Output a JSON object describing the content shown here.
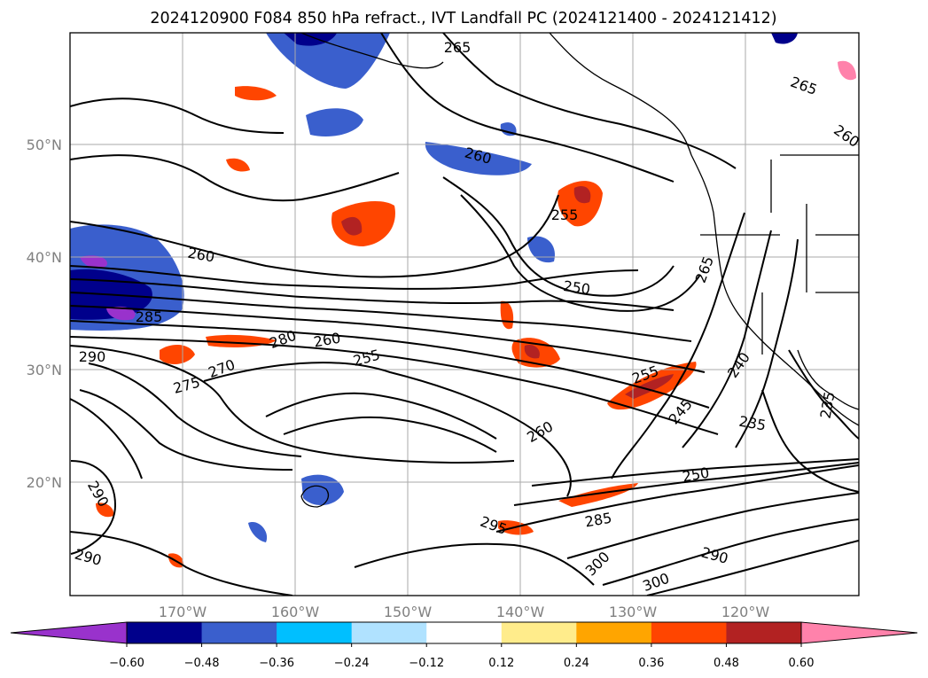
{
  "title": "2024120900 F084 850 hPa refract., IVT Landfall PC (2024121400 - 2024121412)",
  "map": {
    "lon_ticks": [
      "170°W",
      "160°W",
      "150°W",
      "140°W",
      "130°W",
      "120°W"
    ],
    "lat_ticks": [
      "50°N",
      "40°N",
      "30°N",
      "20°N"
    ],
    "contour_labels": [
      "265",
      "265",
      "260",
      "260",
      "255",
      "260",
      "265",
      "250",
      "285",
      "290",
      "280",
      "260",
      "255",
      "275",
      "270",
      "255",
      "240",
      "245",
      "260",
      "235",
      "235",
      "250",
      "290",
      "285",
      "295",
      "290",
      "300",
      "300",
      "290"
    ]
  },
  "colorbar": {
    "ticks": [
      "−0.60",
      "−0.48",
      "−0.36",
      "−0.24",
      "−0.12",
      "0.12",
      "0.24",
      "0.36",
      "0.48",
      "0.60"
    ],
    "colors": [
      "#9932cc",
      "#00008b",
      "#3a5fcd",
      "#00bfff",
      "#b0e2ff",
      "#ffffff",
      "#ffec8b",
      "#ffa500",
      "#ff4500",
      "#b22222",
      "#ff82ab"
    ]
  },
  "colors": {
    "map_frame": "#000000",
    "grid": "#aaaaaa",
    "tick_label": "#808080"
  }
}
